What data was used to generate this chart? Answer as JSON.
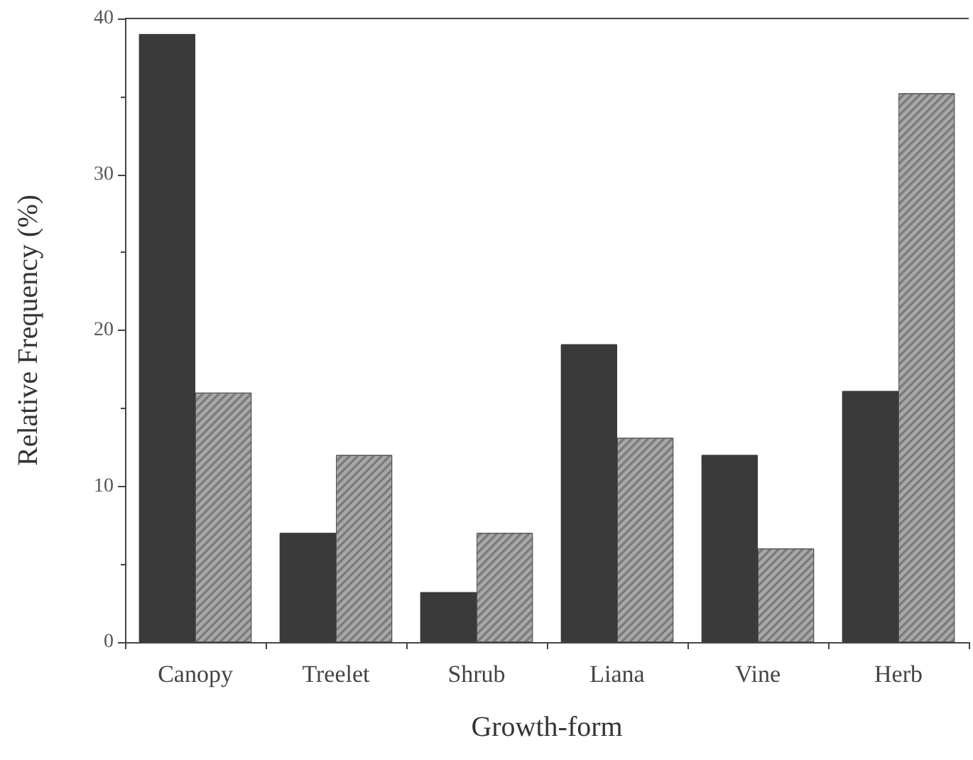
{
  "chart_data": {
    "type": "bar",
    "xlabel": "Growth-form",
    "ylabel": "Relative Frequency (%)",
    "categories": [
      "Canopy",
      "Treelet",
      "Shrub",
      "Liana",
      "Vine",
      "Herb"
    ],
    "series": [
      {
        "color": "#3a3a3a",
        "values": [
          39,
          7,
          3.2,
          19.1,
          12,
          16.1
        ]
      },
      {
        "color": "#a8a8a8",
        "values": [
          16,
          12,
          7,
          13.1,
          6,
          35.2
        ]
      }
    ],
    "ylim": [
      0,
      40
    ],
    "yticks": [
      0,
      10,
      20,
      30,
      40
    ],
    "grid": false
  }
}
